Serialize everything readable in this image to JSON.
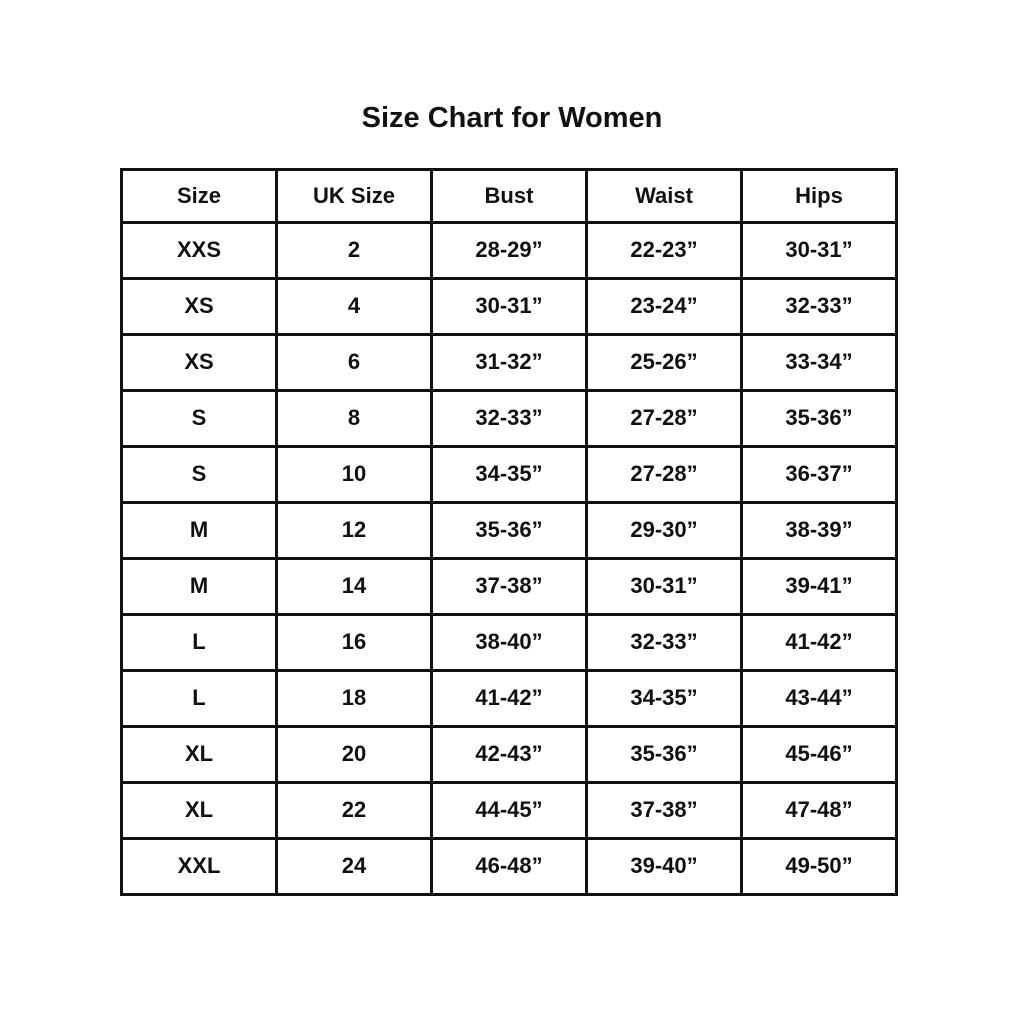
{
  "page": {
    "title": "Size Chart for Women"
  },
  "table": {
    "headers": [
      "Size",
      "UK Size",
      "Bust",
      "Waist",
      "Hips"
    ],
    "rows": [
      [
        "XXS",
        "2",
        "28-29”",
        "22-23”",
        "30-31”"
      ],
      [
        "XS",
        "4",
        "30-31”",
        "23-24”",
        "32-33”"
      ],
      [
        "XS",
        "6",
        "31-32”",
        "25-26”",
        "33-34”"
      ],
      [
        "S",
        "8",
        "32-33”",
        "27-28”",
        "35-36”"
      ],
      [
        "S",
        "10",
        "34-35”",
        "27-28”",
        "36-37”"
      ],
      [
        "M",
        "12",
        "35-36”",
        "29-30”",
        "38-39”"
      ],
      [
        "M",
        "14",
        "37-38”",
        "30-31”",
        "39-41”"
      ],
      [
        "L",
        "16",
        "38-40”",
        "32-33”",
        "41-42”"
      ],
      [
        "L",
        "18",
        "41-42”",
        "34-35”",
        "43-44”"
      ],
      [
        "XL",
        "20",
        "42-43”",
        "35-36”",
        "45-46”"
      ],
      [
        "XL",
        "22",
        "44-45”",
        "37-38”",
        "47-48”"
      ],
      [
        "XXL",
        "24",
        "46-48”",
        "39-40”",
        "49-50”"
      ]
    ]
  },
  "colors": {
    "background": "#ffffff",
    "border": "#111111",
    "text": "#111111"
  }
}
